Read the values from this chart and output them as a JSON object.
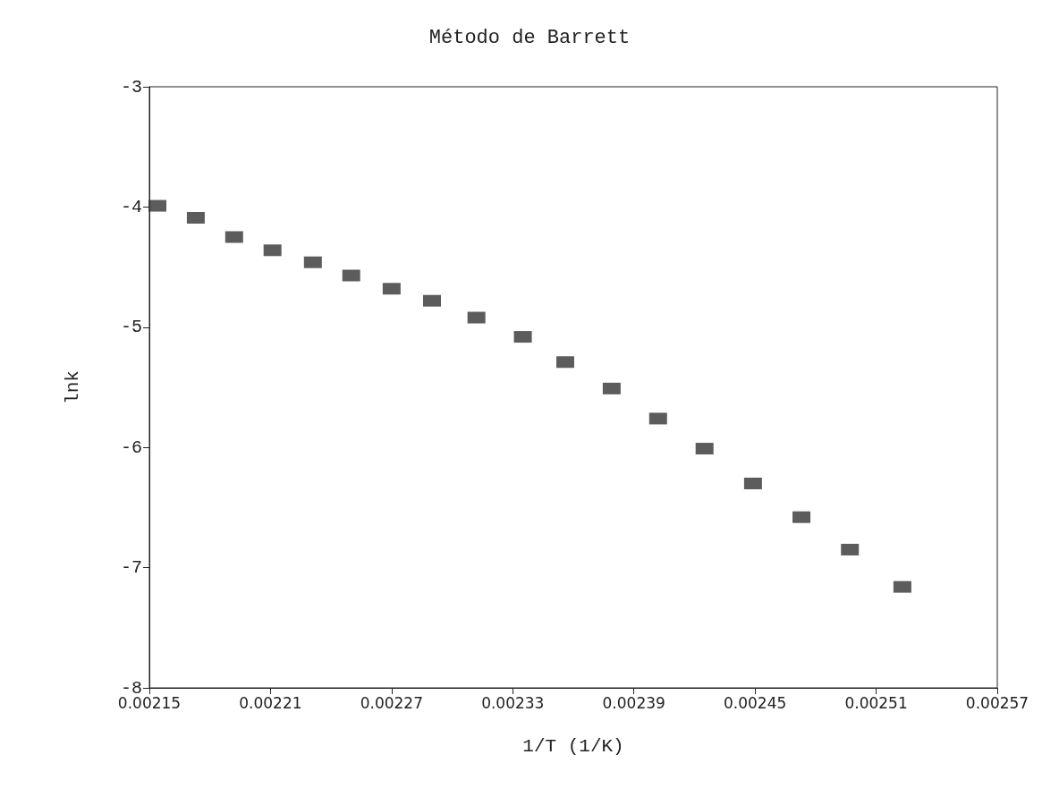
{
  "chart_data": {
    "type": "scatter",
    "title": "Método de Barrett",
    "xlabel": "1/T (1/K)",
    "ylabel": "lnk",
    "x": [
      0.002154,
      0.002173,
      0.002192,
      0.002211,
      0.002231,
      0.00225,
      0.00227,
      0.00229,
      0.002312,
      0.002335,
      0.002356,
      0.002379,
      0.002402,
      0.002425,
      0.002449,
      0.002473,
      0.002497,
      0.002523
    ],
    "series": [
      {
        "color": "#333333",
        "values": [
          -3.99,
          -4.09,
          -4.25,
          -4.36,
          -4.46,
          -4.57,
          -4.68,
          -4.78,
          -4.92,
          -5.08,
          -5.29,
          -5.51,
          -5.76,
          -6.01,
          -6.3,
          -6.58,
          -6.85,
          -7.16
        ]
      }
    ],
    "xlim": [
      0.00215,
      0.00257
    ],
    "xticks": [
      0.00215,
      0.00221,
      0.00227,
      0.00233,
      0.00239,
      0.00245,
      0.00251,
      0.00257
    ],
    "ylim": [
      -8,
      -3
    ],
    "yticks": [
      -8,
      -7,
      -6,
      -5,
      -4,
      -3
    ],
    "marker": "square",
    "grid": false
  }
}
